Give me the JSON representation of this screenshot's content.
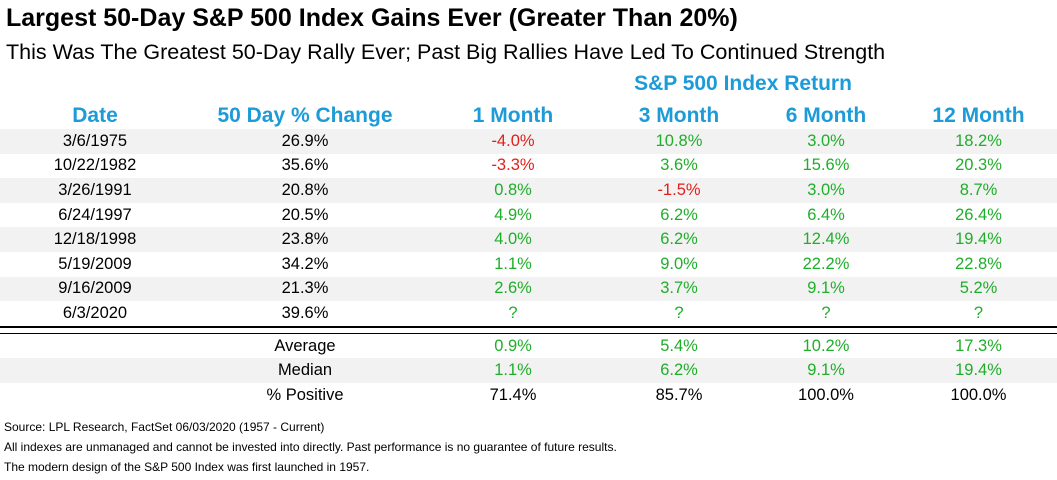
{
  "header": {
    "title": "Largest 50-Day S&P 500 Index Gains Ever (Greater Than 20%)",
    "subtitle": "This Was The Greatest 50-Day Rally Ever; Past Big Rallies Have Led To Continued Strength",
    "group_label": "S&P 500 Index Return"
  },
  "colors": {
    "header_blue": "#1c9bd8",
    "positive_green": "#1fae2a",
    "negative_red": "#e0201b",
    "row_shade": "#f2f2f2"
  },
  "chart_data": {
    "type": "table",
    "title": "Largest 50-Day S&P 500 Index Gains Ever (Greater Than 20%)",
    "columns": [
      "Date",
      "50 Day % Change",
      "1 Month",
      "3 Month",
      "6 Month",
      "12 Month"
    ],
    "rows": [
      [
        "3/6/1975",
        "26.9%",
        "-4.0%",
        "10.8%",
        "3.0%",
        "18.2%"
      ],
      [
        "10/22/1982",
        "35.6%",
        "-3.3%",
        "3.6%",
        "15.6%",
        "20.3%"
      ],
      [
        "3/26/1991",
        "20.8%",
        "0.8%",
        "-1.5%",
        "3.0%",
        "8.7%"
      ],
      [
        "6/24/1997",
        "20.5%",
        "4.9%",
        "6.2%",
        "6.4%",
        "26.4%"
      ],
      [
        "12/18/1998",
        "23.8%",
        "4.0%",
        "6.2%",
        "12.4%",
        "19.4%"
      ],
      [
        "5/19/2009",
        "34.2%",
        "1.1%",
        "9.0%",
        "22.2%",
        "22.8%"
      ],
      [
        "9/16/2009",
        "21.3%",
        "2.6%",
        "3.7%",
        "9.1%",
        "5.2%"
      ],
      [
        "6/3/2020",
        "39.6%",
        "?",
        "?",
        "?",
        "?"
      ]
    ],
    "summary": [
      [
        "",
        "Average",
        "0.9%",
        "5.4%",
        "10.2%",
        "17.3%"
      ],
      [
        "",
        "Median",
        "1.1%",
        "6.2%",
        "9.1%",
        "19.4%"
      ],
      [
        "",
        "% Positive",
        "71.4%",
        "85.7%",
        "100.0%",
        "100.0%"
      ]
    ]
  },
  "footer": [
    "Source: LPL Research, FactSet 06/03/2020 (1957 - Current)",
    "All indexes are unmanaged and cannot be invested into directly. Past performance is no guarantee of future results.",
    "The modern design of the S&P 500 Index was first launched in 1957."
  ]
}
